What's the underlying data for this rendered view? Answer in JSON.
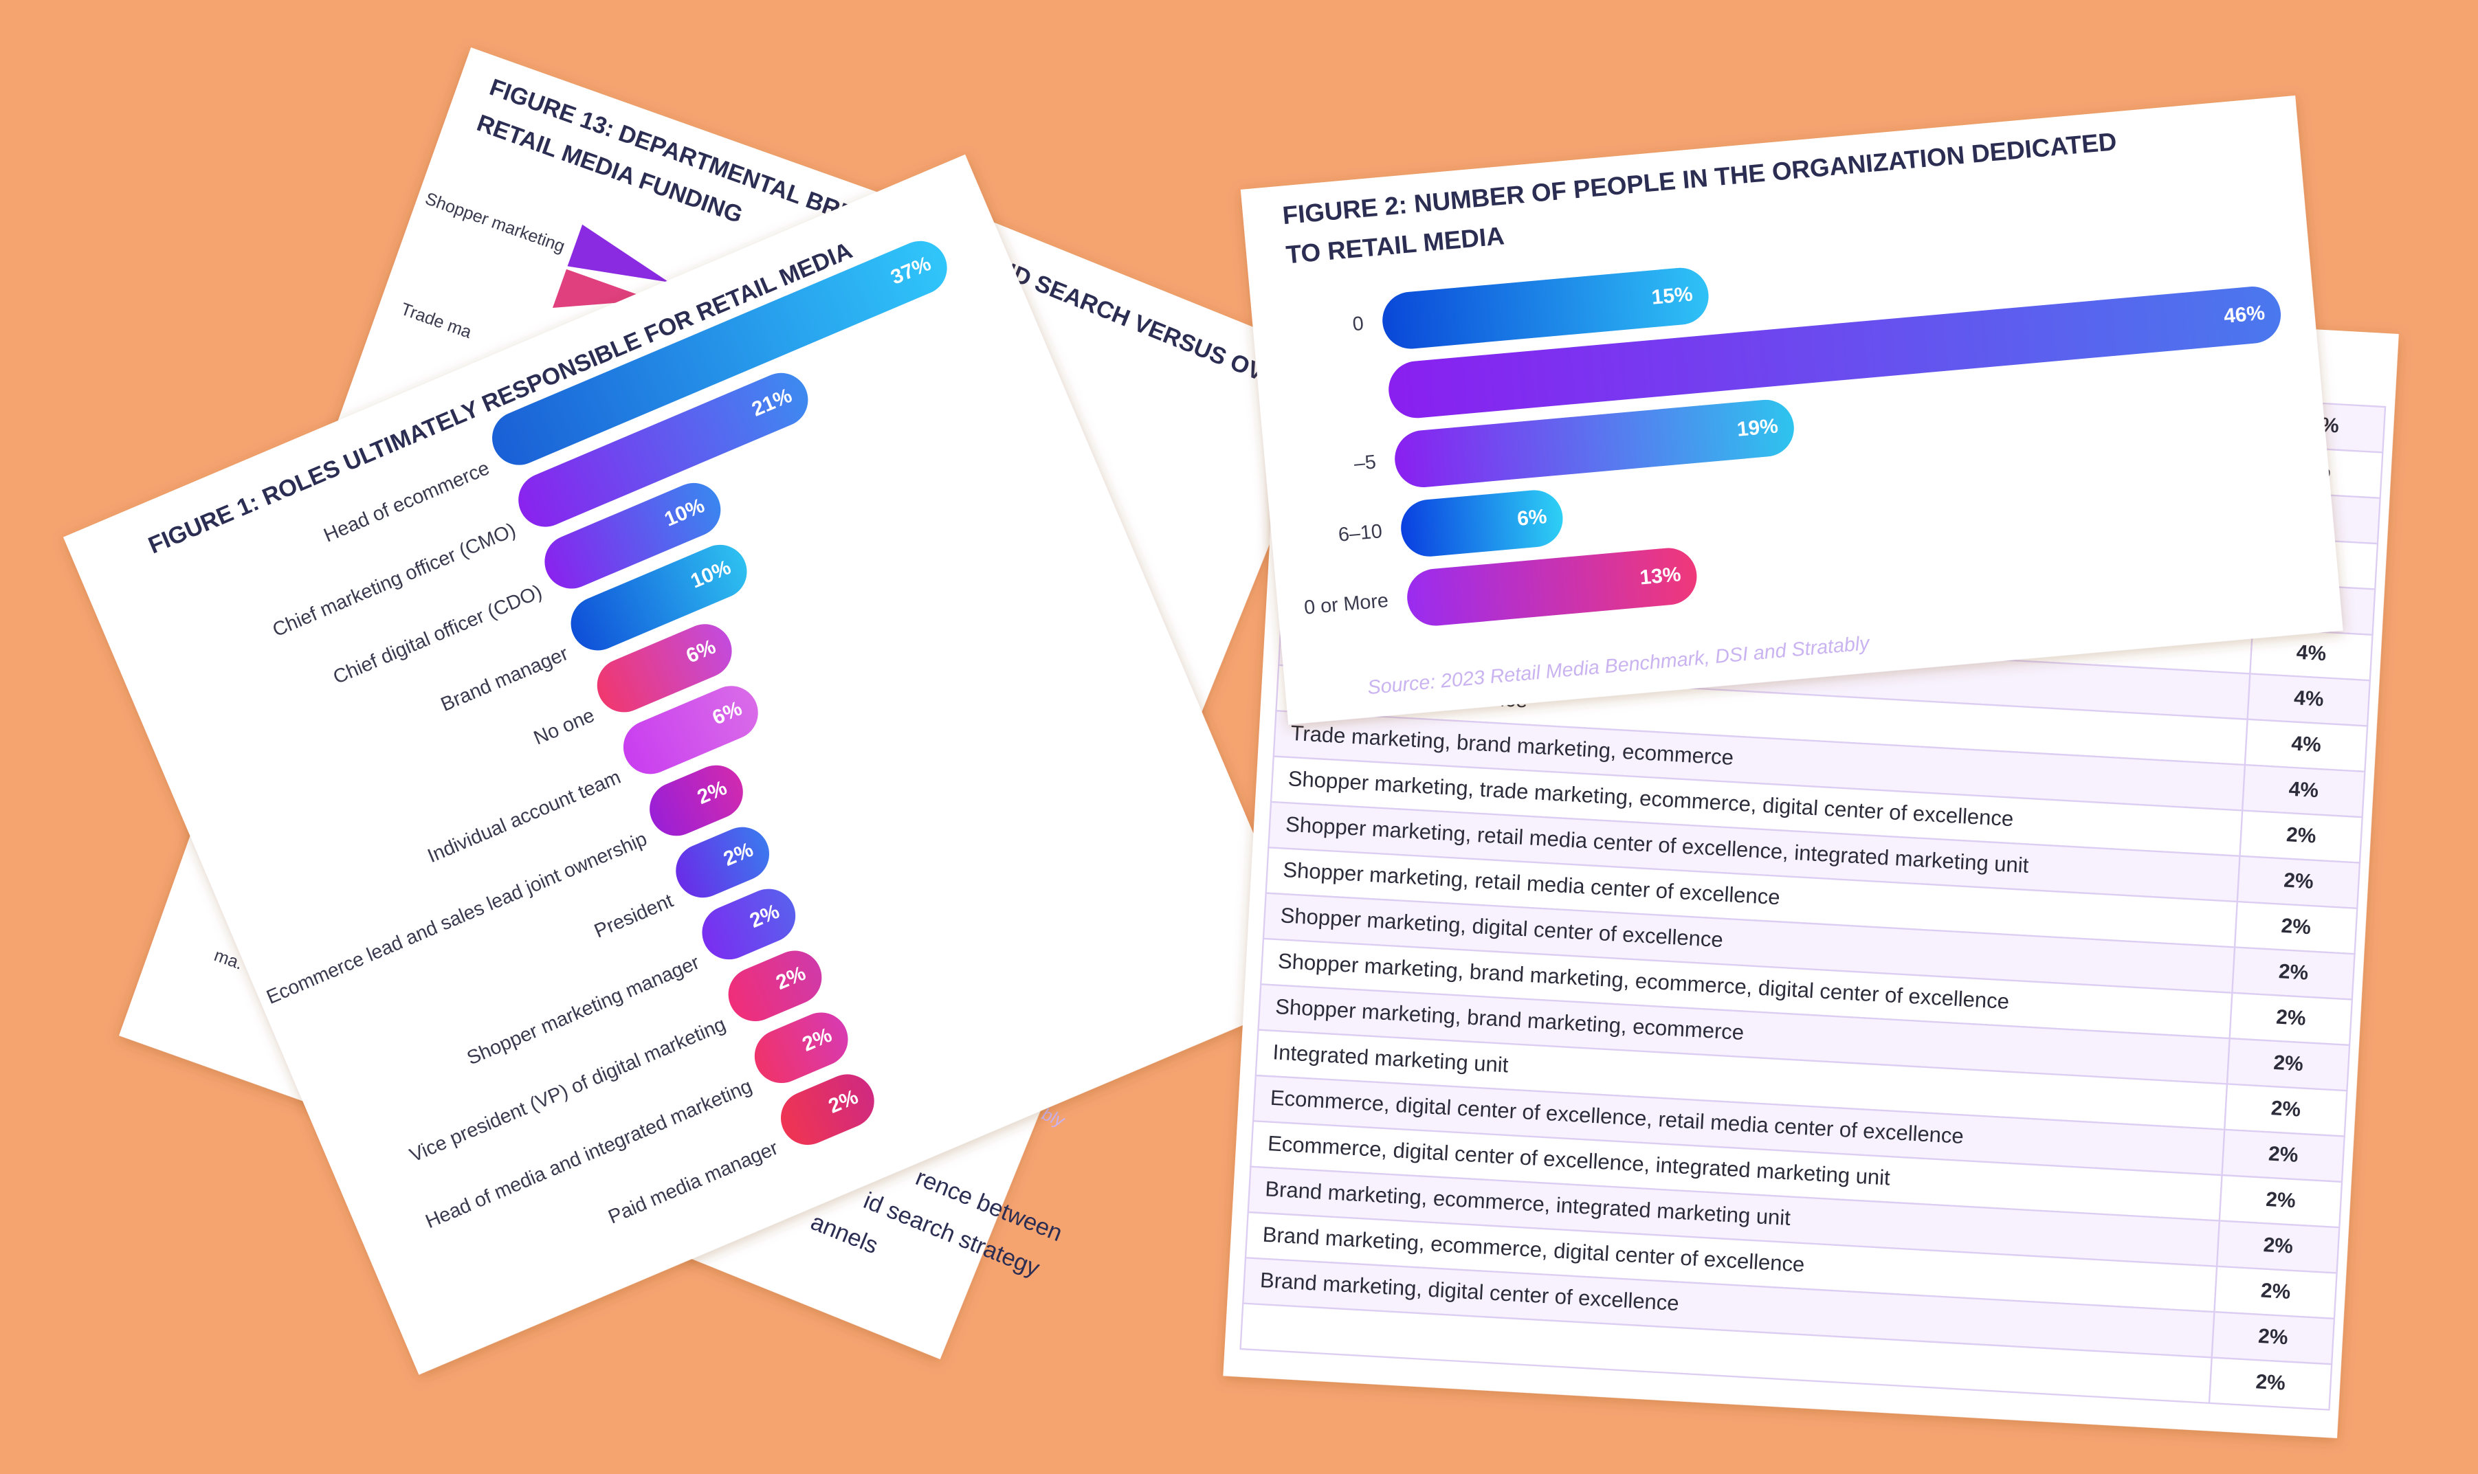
{
  "chart_data": [
    {
      "type": "bar",
      "title": "FIGURE 1: ROLES ULTIMATELY RESPONSIBLE FOR RETAIL MEDIA",
      "categories": [
        "Head of ecommerce",
        "Chief marketing officer (CMO)",
        "Chief digital officer (CDO)",
        "Brand manager",
        "No one",
        "Individual account team",
        "Ecommerce lead and sales lead joint ownership",
        "President",
        "Shopper marketing manager",
        "Vice president (VP) of digital marketing",
        "Head of media and integrated marketing",
        "Paid media manager"
      ],
      "values": [
        37,
        21,
        10,
        10,
        6,
        6,
        2,
        2,
        2,
        2,
        2,
        2
      ],
      "value_labels": [
        "37%",
        "21%",
        "10%",
        "10%",
        "6%",
        "6%",
        "2%",
        "2%",
        "2%",
        "2%",
        "2%",
        "2%"
      ],
      "colors": [
        [
          "#1a5fd6",
          "#30c6fa"
        ],
        [
          "#8a22ee",
          "#3d8af0"
        ],
        [
          "#8a22ee",
          "#3a86ef"
        ],
        [
          "#0f4fd8",
          "#2ec0f0"
        ],
        [
          "#f0386f",
          "#c34bdc"
        ],
        [
          "#c93ef0",
          "#d96be8"
        ],
        [
          "#9a1fd6",
          "#d02ab0"
        ],
        [
          "#6a2ce8",
          "#3c78ee"
        ],
        [
          "#7a2ef0",
          "#5a60ee"
        ],
        [
          "#f02e78",
          "#d03aa8"
        ],
        [
          "#f0336a",
          "#d83ab0"
        ],
        [
          "#f03552",
          "#d02a80"
        ]
      ]
    },
    {
      "type": "bar",
      "title": [
        "FIGURE 2: NUMBER OF PEOPLE IN THE ORGANIZATION DEDICATED",
        "TO RETAIL MEDIA"
      ],
      "categories": [
        "0",
        null,
        "–5",
        "6–10",
        "0 or More"
      ],
      "values": [
        15,
        46,
        19,
        6,
        13
      ],
      "value_labels": [
        "15%",
        "46%",
        "19%",
        "6%",
        "13%"
      ],
      "colors": [
        [
          "#0a47d8",
          "#2fc2f6"
        ],
        [
          "#8a1ff0",
          "#4a78ee"
        ],
        [
          "#8a1ff0",
          "#2ec4ee"
        ],
        [
          "#0a3fe0",
          "#2ed0f5"
        ],
        [
          "#9a2cf0",
          "#f0387a"
        ]
      ],
      "source": "Source: 2023 Retail Media Benchmark, DSI and Stratably"
    }
  ],
  "figure_13": {
    "title": [
      "FIGURE 13: DEPARTMENTAL BRE",
      "RETAIL MEDIA FUNDING"
    ],
    "labels": [
      "Shopper marketing",
      "Trade ma",
      "ma."
    ]
  },
  "paid_search": {
    "title": "PAID SEARCH VERSUS OVERALL",
    "lines": [
      "rence between",
      "id search strategy",
      "annels"
    ],
    "source": "bly"
  },
  "table": {
    "rows": [
      {
        "value": "1%"
      },
      {
        "value": "%"
      },
      {
        "value": "%"
      },
      {
        "value": "4%"
      },
      {
        "value": "4%"
      },
      {
        "label": "gital center of excellence",
        "value": "4%"
      },
      {
        "label": "Trade marketing, brand marketing, ecommerce",
        "value": "4%"
      },
      {
        "label": "Shopper marketing, trade marketing, ecommerce, digital center of excellence",
        "value": "2%"
      },
      {
        "label": "Shopper marketing, retail media center of excellence, integrated marketing unit",
        "value": "2%"
      },
      {
        "label": "Shopper marketing, retail media center of excellence",
        "value": "2%"
      },
      {
        "label": "Shopper marketing, digital center of excellence",
        "value": "2%"
      },
      {
        "label": "Shopper marketing, brand marketing, ecommerce, digital center of excellence",
        "value": "2%"
      },
      {
        "label": "Shopper marketing, brand marketing, ecommerce",
        "value": "2%"
      },
      {
        "label": "Integrated marketing unit",
        "value": "2%"
      },
      {
        "label": "Ecommerce, digital center of excellence, retail media center of excellence",
        "value": "2%"
      },
      {
        "label": "Ecommerce, digital center of excellence, integrated marketing unit",
        "value": "2%"
      },
      {
        "label": "Brand marketing, ecommerce, integrated marketing unit",
        "value": "2%"
      },
      {
        "label": "Brand marketing, ecommerce, digital center of excellence",
        "value": "2%"
      },
      {
        "label": "Brand marketing, digital center of excellence",
        "value": "2%"
      },
      {
        "value": "2%"
      }
    ]
  }
}
